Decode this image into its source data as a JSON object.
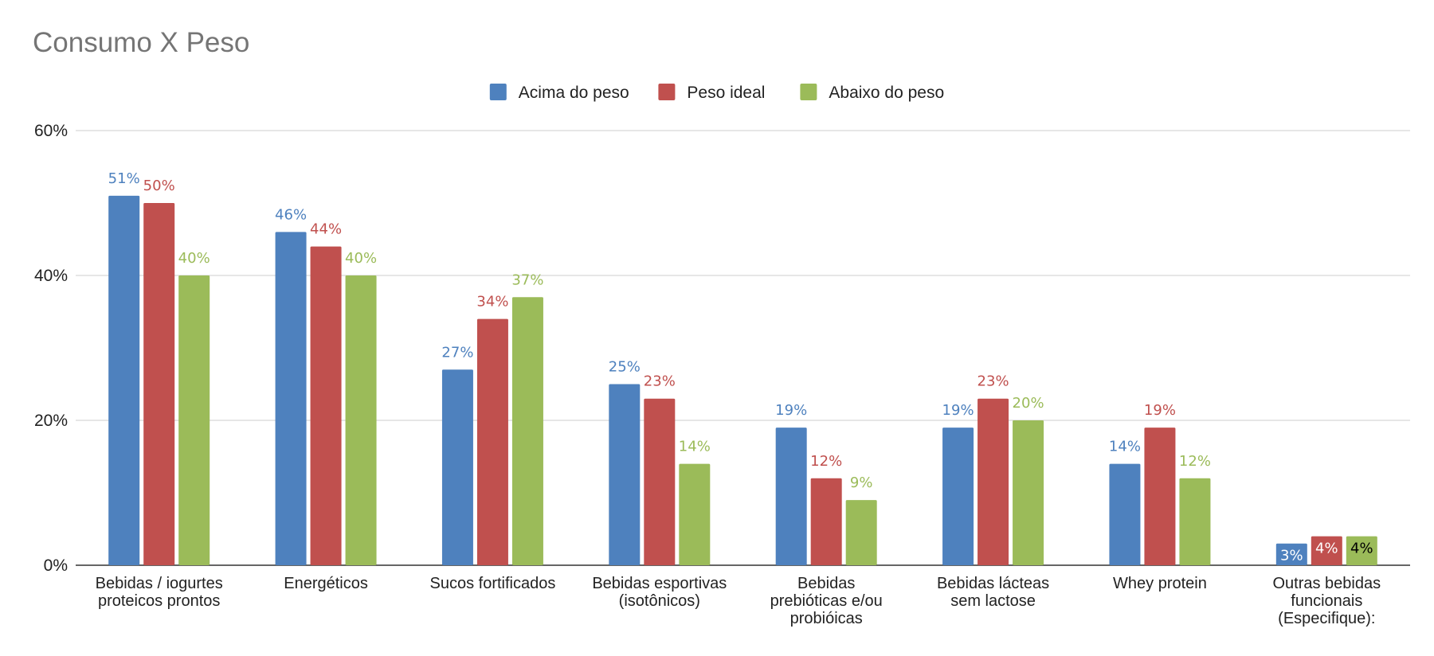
{
  "chart_data": {
    "type": "bar",
    "title": "Consumo X Peso",
    "xlabel": "",
    "ylabel": "",
    "ylim": [
      0,
      60
    ],
    "y_ticks": [
      "0%",
      "20%",
      "40%",
      "60%"
    ],
    "y_tick_values": [
      0,
      20,
      40,
      60
    ],
    "grid": true,
    "legend_position": "top-center",
    "categories": [
      [
        "Bebidas / iogurtes",
        "proteicos prontos"
      ],
      [
        "Energéticos"
      ],
      [
        "Sucos fortificados"
      ],
      [
        "Bebidas esportivas",
        "(isotônicos)"
      ],
      [
        "Bebidas",
        "prebióticas e/ou",
        "probióicas"
      ],
      [
        "Bebidas lácteas",
        "sem lactose"
      ],
      [
        "Whey protein"
      ],
      [
        "Outras bebidas",
        "funcionais",
        "(Especifique):"
      ]
    ],
    "series": [
      {
        "name": "Acima do peso",
        "color": "#4e81be",
        "values": [
          51,
          46,
          27,
          25,
          19,
          19,
          14,
          3
        ],
        "labels": [
          "51%",
          "46%",
          "27%",
          "25%",
          "19%",
          "19%",
          "14%",
          "3%"
        ]
      },
      {
        "name": "Peso ideal",
        "color": "#c0504e",
        "values": [
          50,
          44,
          34,
          23,
          12,
          23,
          19,
          4
        ],
        "labels": [
          "50%",
          "44%",
          "34%",
          "23%",
          "12%",
          "23%",
          "19%",
          "4%"
        ]
      },
      {
        "name": "Abaixo do peso",
        "color": "#9bbb59",
        "values": [
          40,
          40,
          37,
          14,
          9,
          20,
          12,
          4
        ],
        "labels": [
          "40%",
          "40%",
          "37%",
          "14%",
          "9%",
          "20%",
          "12%",
          "4%"
        ]
      }
    ]
  }
}
